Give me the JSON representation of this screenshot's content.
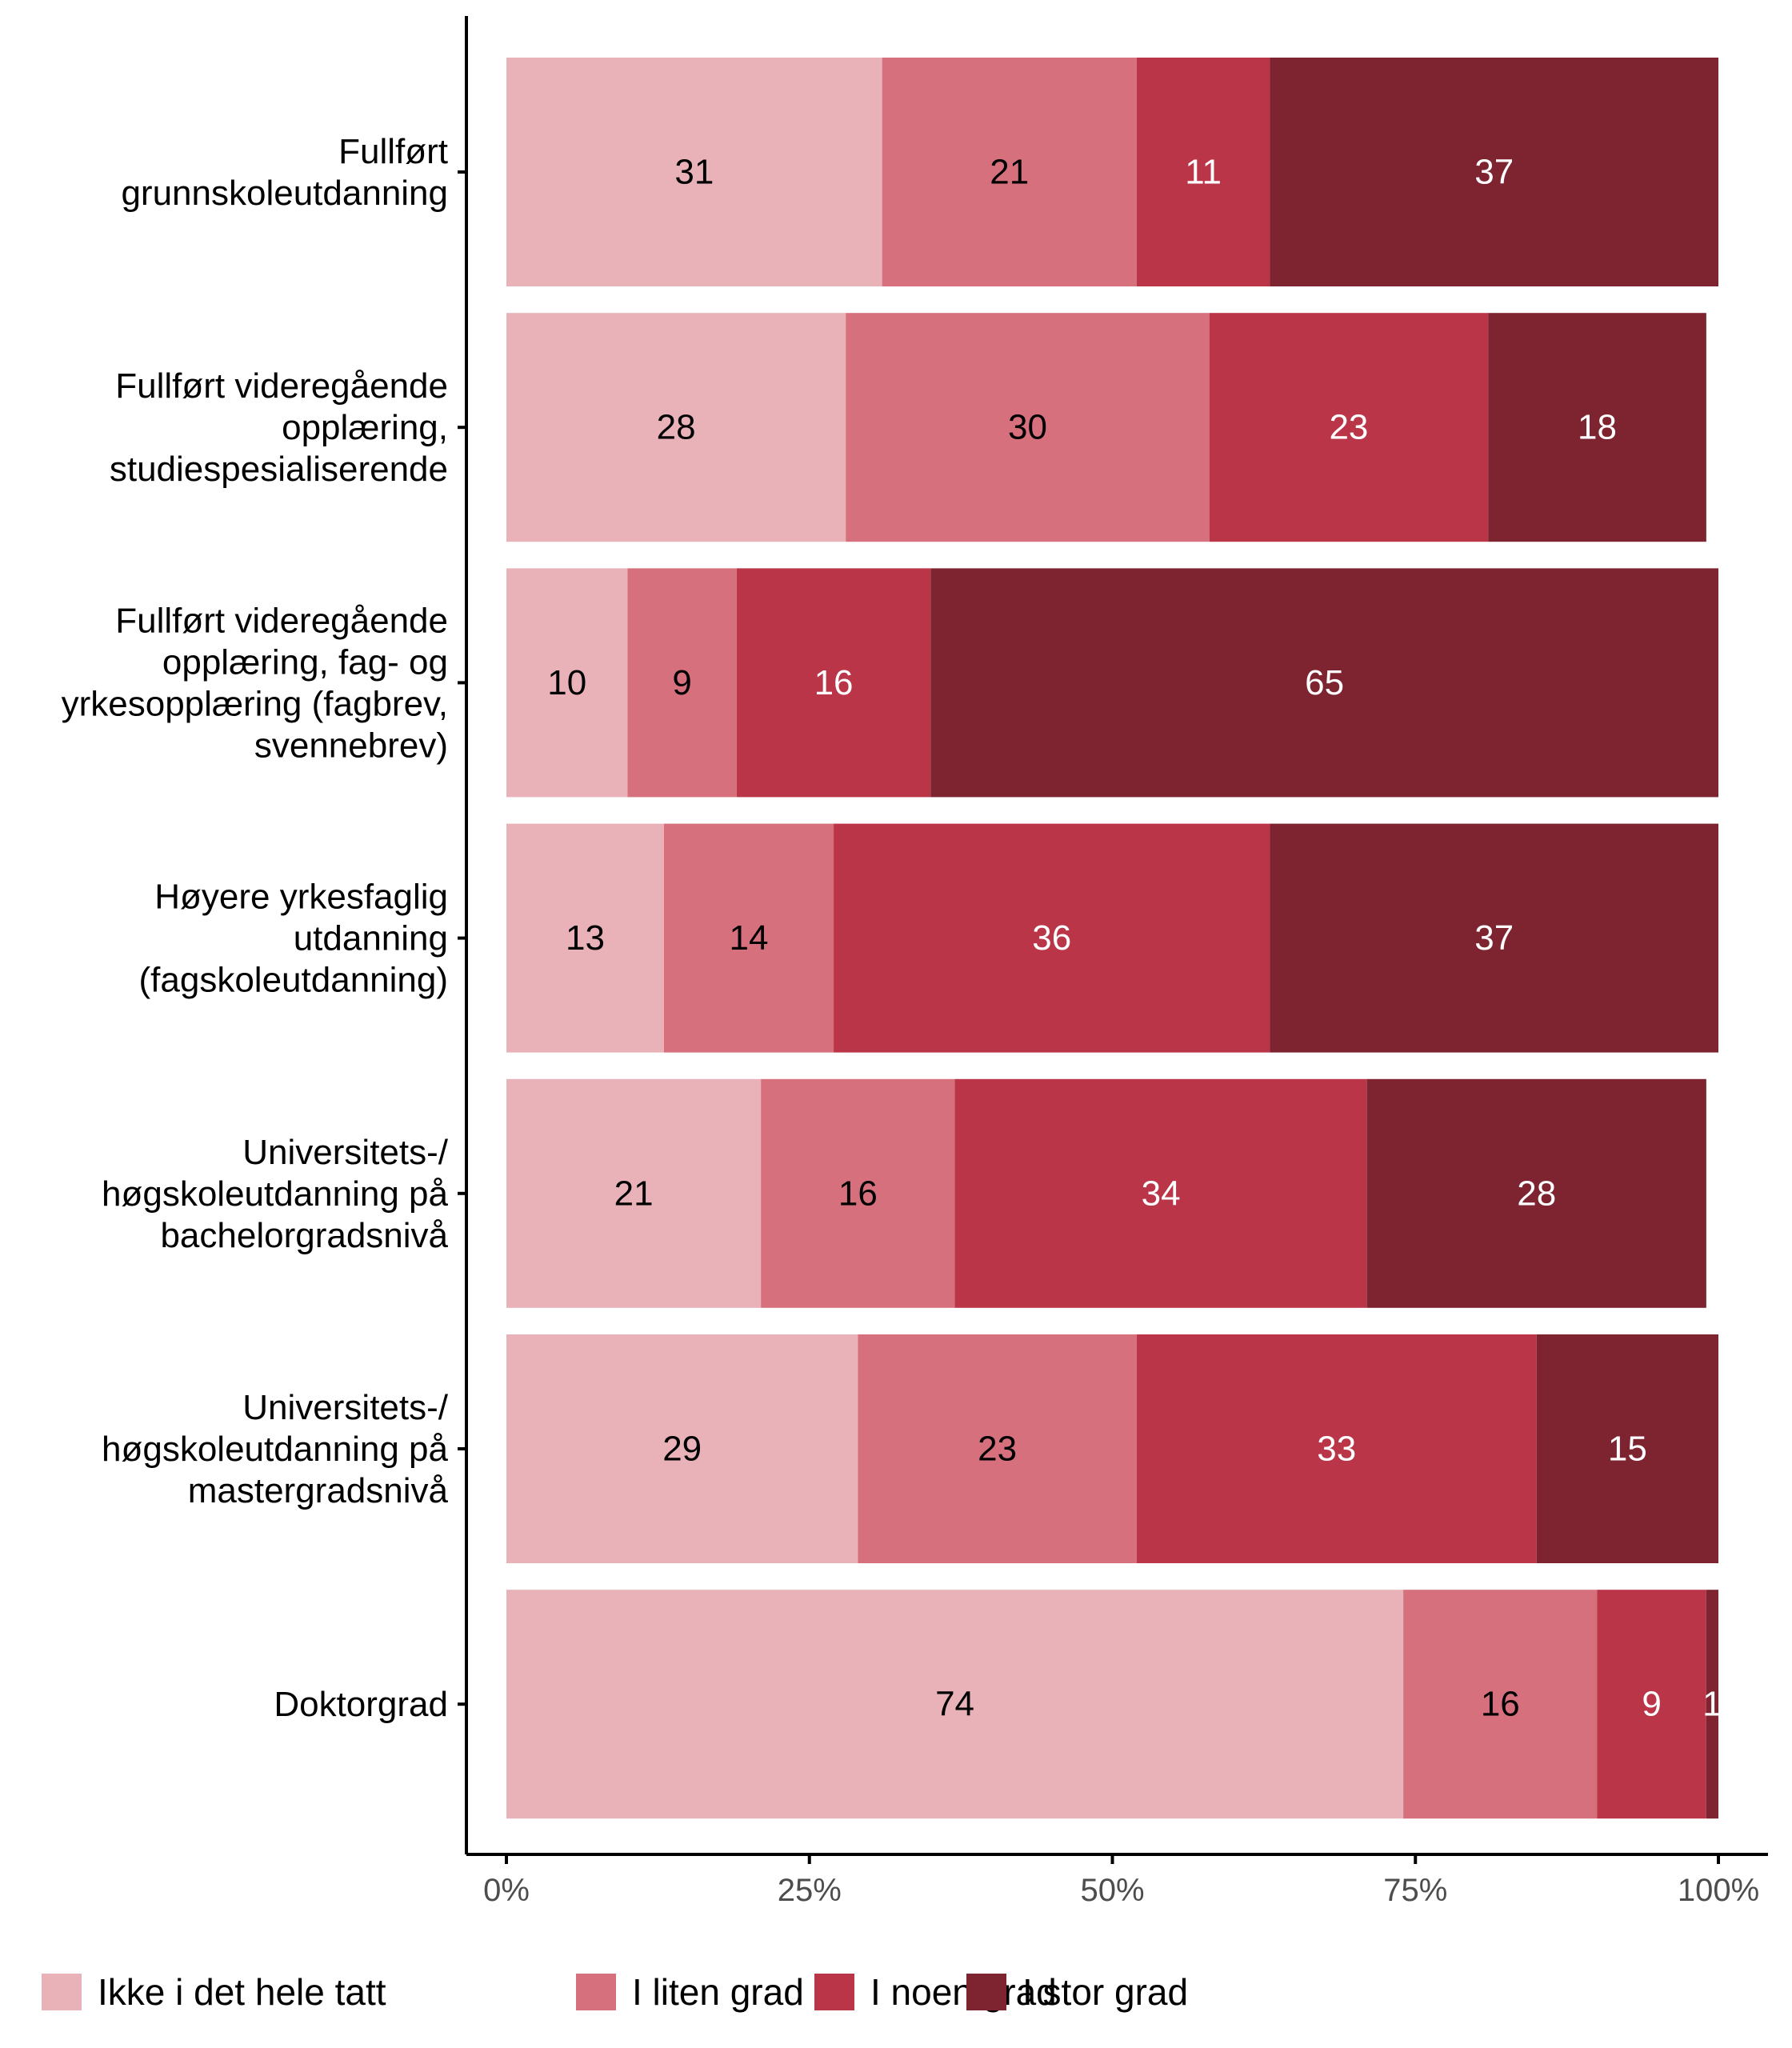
{
  "chart_data": {
    "type": "bar",
    "orientation": "horizontal",
    "stacked": true,
    "normalized_percent": true,
    "categories": [
      "Fullført\ngrunnskoleutdanning",
      "Fullført videregående\nopplæring,\nstudiespesialiserende",
      "Fullført videregående\nopplæring, fag- og\nyrkesopplæring (fagbrev,\nsvennebrev)",
      "Høyere yrkesfaglig\nutdanning\n(fagskoleutdanning)",
      "Universitets-/\nhøgskoleutdanning på\nbachelorgradsnivå",
      "Universitets-/\nhøgskoleutdanning på\nmastergradsnivå",
      "Doktorgrad"
    ],
    "series": [
      {
        "name": "Ikke i det hele tatt",
        "color": "#e8b2b8",
        "label_color": "#000000",
        "values": [
          31,
          28,
          10,
          13,
          21,
          29,
          74
        ]
      },
      {
        "name": "I liten grad",
        "color": "#d6707c",
        "label_color": "#000000",
        "values": [
          21,
          30,
          9,
          14,
          16,
          23,
          16
        ]
      },
      {
        "name": "I noen grad",
        "color": "#bb3549",
        "label_color": "#ffffff",
        "values": [
          11,
          23,
          16,
          36,
          34,
          33,
          9
        ]
      },
      {
        "name": "I stor grad",
        "color": "#7e2430",
        "label_color": "#ffffff",
        "values": [
          37,
          18,
          65,
          37,
          28,
          15,
          1
        ]
      }
    ],
    "data_labels": [
      [
        "31",
        "21",
        "11",
        "37"
      ],
      [
        "28",
        "30",
        "23",
        "18"
      ],
      [
        "10",
        "9",
        "16",
        "65"
      ],
      [
        "13",
        "14",
        "36",
        "37"
      ],
      [
        "21",
        "16",
        "34",
        "28"
      ],
      [
        "29",
        "23",
        "33",
        "15"
      ],
      [
        "74",
        "16",
        "9",
        "1"
      ]
    ],
    "x_ticks": [
      0,
      25,
      50,
      75,
      100
    ],
    "x_tick_labels": [
      "0%",
      "25%",
      "50%",
      "75%",
      "100%"
    ],
    "xlim": [
      0,
      100
    ],
    "xlabel": "",
    "ylabel": "",
    "title": "",
    "grid": false,
    "legend_position": "bottom"
  }
}
